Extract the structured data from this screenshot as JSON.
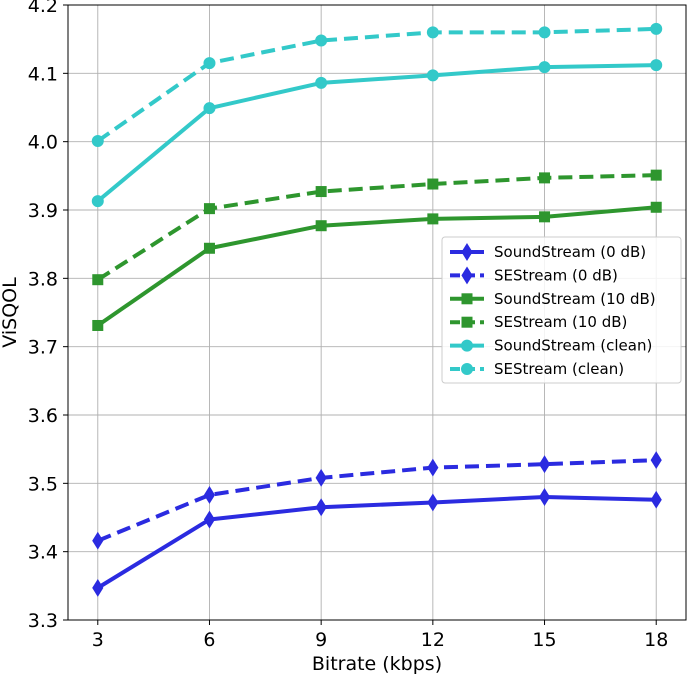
{
  "chart_data": {
    "type": "line",
    "title": "",
    "xlabel": "Bitrate (kbps)",
    "ylabel": "ViSQOL",
    "x": [
      3,
      6,
      9,
      12,
      15,
      18
    ],
    "xlim": [
      2.2,
      18.8
    ],
    "ylim": [
      3.3,
      4.2
    ],
    "xticks": [
      "3",
      "6",
      "9",
      "12",
      "15",
      "18"
    ],
    "yticks": [
      "3.3",
      "3.4",
      "3.5",
      "3.6",
      "3.7",
      "3.8",
      "3.9",
      "4.0",
      "4.1",
      "4.2"
    ],
    "grid": true,
    "legend_position": "center-right",
    "series": [
      {
        "name": "SoundStream (0 dB)",
        "color": "#2b2be0",
        "dash": "solid",
        "marker": "diamond",
        "values": [
          3.347,
          3.447,
          3.465,
          3.472,
          3.48,
          3.476
        ]
      },
      {
        "name": "SEStream (0 dB)",
        "color": "#2b2be0",
        "dash": "dashed",
        "marker": "diamond",
        "values": [
          3.416,
          3.483,
          3.508,
          3.523,
          3.528,
          3.534
        ]
      },
      {
        "name": "SoundStream (10 dB)",
        "color": "#2e962e",
        "dash": "solid",
        "marker": "square",
        "values": [
          3.731,
          3.844,
          3.877,
          3.887,
          3.89,
          3.904
        ]
      },
      {
        "name": "SEStream (10 dB)",
        "color": "#2e962e",
        "dash": "dashed",
        "marker": "square",
        "values": [
          3.798,
          3.902,
          3.927,
          3.938,
          3.947,
          3.951
        ]
      },
      {
        "name": "SoundStream (clean)",
        "color": "#33c9c9",
        "dash": "solid",
        "marker": "circle",
        "values": [
          3.913,
          4.049,
          4.086,
          4.097,
          4.109,
          4.112
        ]
      },
      {
        "name": "SEStream (clean)",
        "color": "#33c9c9",
        "dash": "dashed",
        "marker": "circle",
        "values": [
          4.001,
          4.115,
          4.148,
          4.16,
          4.16,
          4.165
        ]
      }
    ]
  }
}
